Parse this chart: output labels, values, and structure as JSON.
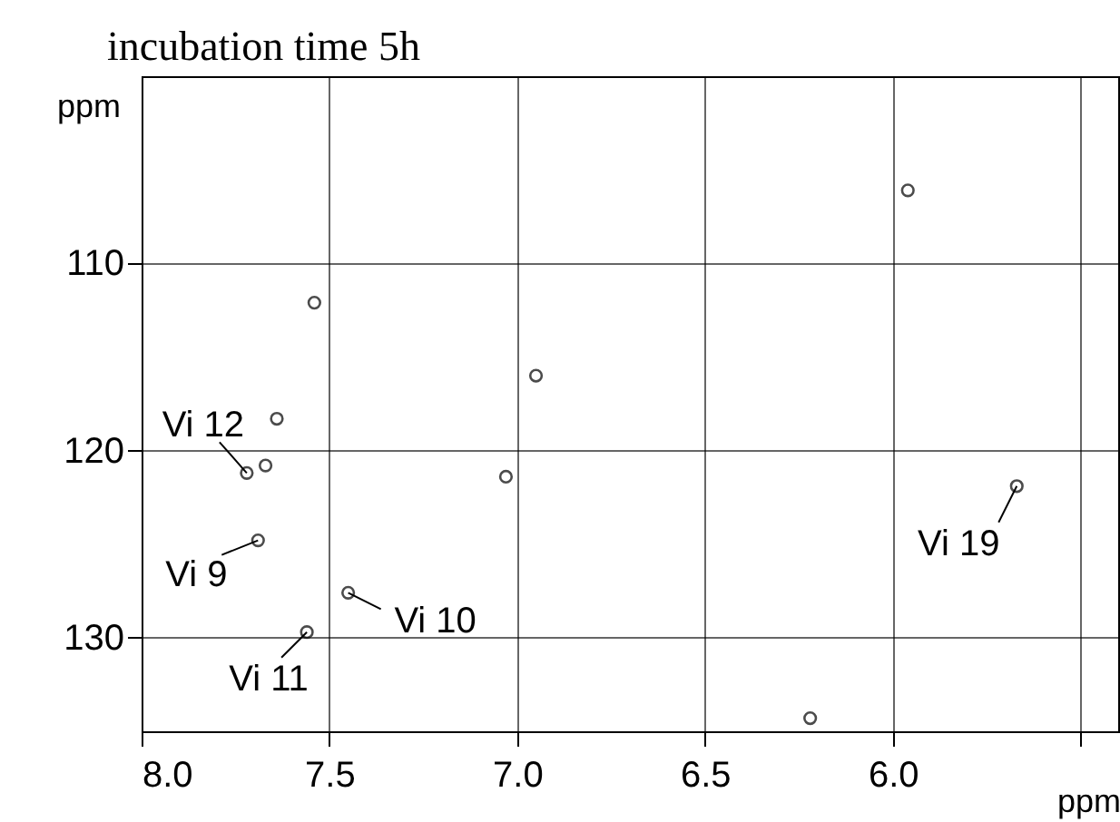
{
  "chart_data": {
    "type": "scatter",
    "title": "incubation time 5h",
    "xlabel": "ppm",
    "ylabel": "ppm",
    "x": [
      7.72,
      7.69,
      7.45,
      7.56,
      5.67,
      5.96,
      7.54,
      6.95,
      7.03,
      7.64,
      7.67,
      6.22
    ],
    "series": [
      {
        "color": "#000000",
        "values": [
          121.2,
          124.8,
          127.6,
          129.7,
          121.9,
          106.1,
          112.1,
          116.0,
          121.4,
          118.3,
          120.8,
          134.3
        ]
      }
    ],
    "xlim": [
      8.0,
      5.4
    ],
    "ylim": [
      135,
      100
    ],
    "xticks": [
      {
        "value": 8.0,
        "label": "8.0"
      },
      {
        "value": 7.5,
        "label": "7.5"
      },
      {
        "value": 7.0,
        "label": "7.0"
      },
      {
        "value": 6.5,
        "label": "6.5"
      },
      {
        "value": 6.0,
        "label": "6.0"
      },
      {
        "value": 5.5,
        "label": null
      }
    ],
    "yticks": [
      110,
      120,
      130
    ],
    "grid": true,
    "marker": "circle",
    "annotations": [
      {
        "text": "Vi 12",
        "x": 7.72,
        "y": 121.2
      },
      {
        "text": "Vi 9",
        "x": 7.69,
        "y": 124.8
      },
      {
        "text": "Vi 10",
        "x": 7.45,
        "y": 127.6
      },
      {
        "text": "Vi 11",
        "x": 7.56,
        "y": 129.7
      },
      {
        "text": "Vi 19",
        "x": 5.67,
        "y": 121.9
      }
    ]
  }
}
